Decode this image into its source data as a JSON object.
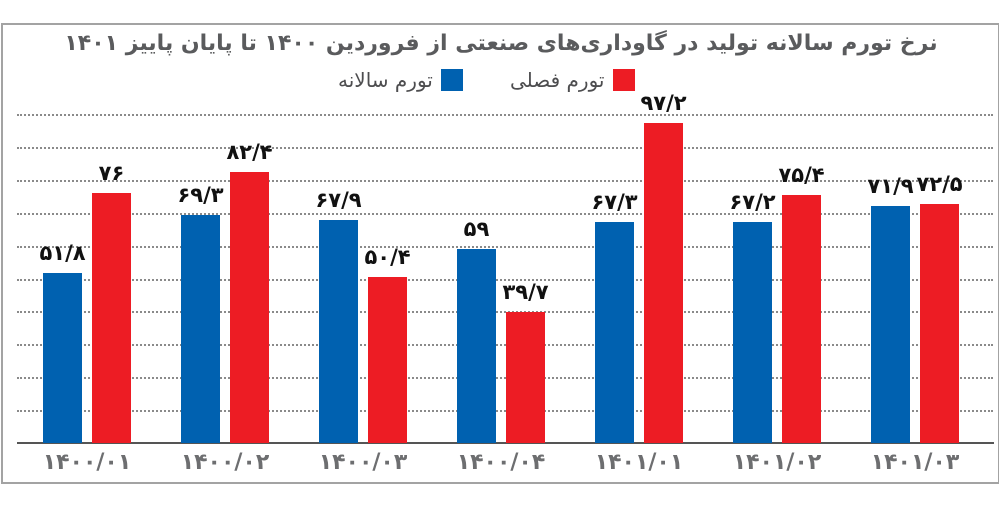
{
  "title": "نرخ تورم سالانه تولید در گاوداری‌های صنعتی از فروردین ۱۴۰۰ تا پایان پاییز ۱۴۰۱",
  "legend": {
    "items": [
      {
        "label": "تورم فصلی",
        "color": "#ed1c24"
      },
      {
        "label": "تورم سالانه",
        "color": "#0061b0"
      }
    ]
  },
  "colors": {
    "annual": "#0061b0",
    "seasonal": "#ed1c24",
    "frame": "#a3a3a3",
    "title": "#5a5b5d",
    "category": "#6d6e70"
  },
  "chart_data": {
    "type": "bar",
    "title": "نرخ تورم سالانه تولید در گاوداری‌های صنعتی از فروردین ۱۴۰۰ تا پایان پاییز ۱۴۰۱",
    "xlabel": "",
    "ylabel": "",
    "ylim": [
      0,
      100
    ],
    "grid": true,
    "gridlines": [
      10,
      20,
      30,
      40,
      50,
      60,
      70,
      80,
      90,
      100
    ],
    "legend_position": "top-center",
    "categories": [
      "1400/01",
      "1400/02",
      "1400/03",
      "1400/04",
      "1401/01",
      "1401/02",
      "1401/03"
    ],
    "category_labels": [
      "۱۴۰۰/۰۱",
      "۱۴۰۰/۰۲",
      "۱۴۰۰/۰۳",
      "۱۴۰۰/۰۴",
      "۱۴۰۱/۰۱",
      "۱۴۰۱/۰۲",
      "۱۴۰۱/۰۳"
    ],
    "series": [
      {
        "name": "تورم سالانه",
        "color": "#0061b0",
        "values": [
          51.8,
          69.3,
          67.9,
          59,
          67.3,
          67.2,
          71.9
        ],
        "labels": [
          "۵۱/۸",
          "۶۹/۳",
          "۶۷/۹",
          "۵۹",
          "۶۷/۳",
          "۶۷/۲",
          "۷۱/۹"
        ]
      },
      {
        "name": "تورم فصلی",
        "color": "#ed1c24",
        "values": [
          76,
          82.4,
          50.4,
          39.7,
          97.2,
          75.4,
          72.5
        ],
        "labels": [
          "۷۶",
          "۸۲/۴",
          "۵۰/۴",
          "۳۹/۷",
          "۹۷/۲",
          "۷۵/۴",
          "۷۲/۵"
        ]
      }
    ]
  }
}
